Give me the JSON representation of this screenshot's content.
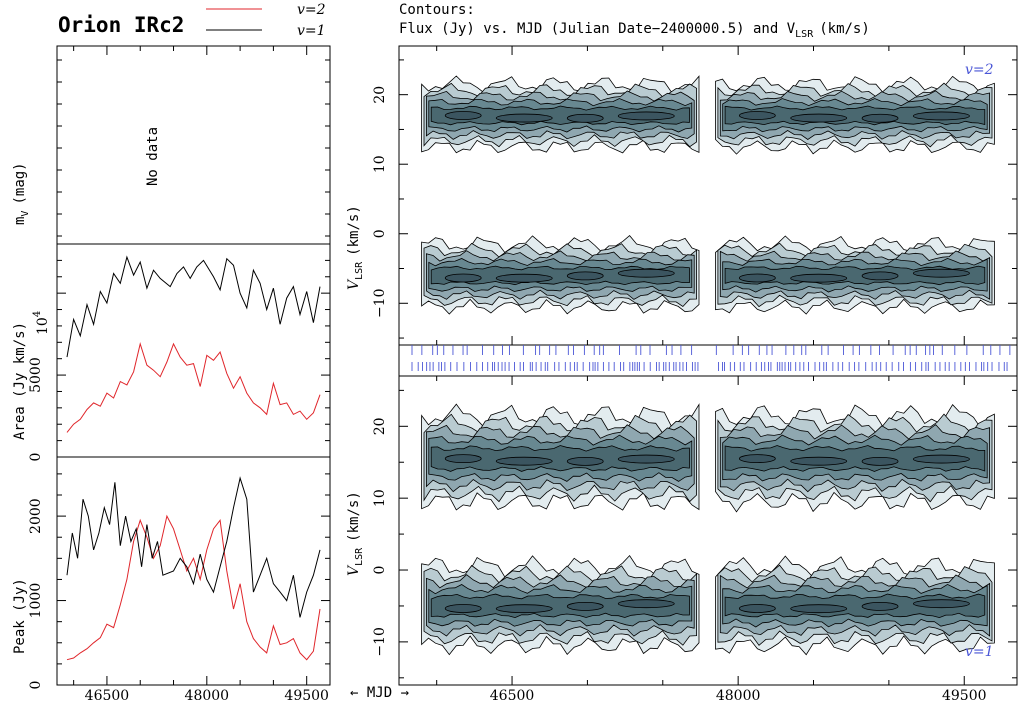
{
  "title": "Orion IRc2",
  "legend": [
    {
      "label": "v=2",
      "color": "#e0262b"
    },
    {
      "label": "v=1",
      "color": "#000000"
    }
  ],
  "contour_header": {
    "line1": "Contours:",
    "line2": "Flux (Jy) vs. MJD (Julian  Date−2400000.5) and V",
    "line2_sub": "LSR",
    "line2_tail": "(km/s)"
  },
  "mjd_arrow_label": "← MJD →",
  "colors": {
    "v2": "#e0262b",
    "v1": "#000000",
    "accent": "#4a56d6",
    "contour_levels": [
      "#e3ecef",
      "#b9cbd1",
      "#8fa7b0",
      "#688891",
      "#4a6870"
    ]
  },
  "panels": {
    "mv": {
      "ylabel": "m",
      "ylabel_sub": "V",
      "ylabel_tail": "(mag)",
      "note": "No data"
    },
    "area": {
      "ylabel": "Area (Jy km/s)",
      "multiplier": "10",
      "multiplier_exp": "4",
      "ticks": [
        "0",
        "5000"
      ]
    },
    "peak": {
      "ylabel": "Peak (Jy)",
      "ticks": [
        "0",
        "1000",
        "2000"
      ]
    },
    "xticks": [
      "46500",
      "48000",
      "49500"
    ],
    "v2_map": {
      "tag": "v=2",
      "ylabel": "V",
      "ylabel_sub": "LSR",
      "ylabel_tail": "(km/s)",
      "ticks": [
        "−10",
        "0",
        "10",
        "20"
      ]
    },
    "v1_map": {
      "tag": "v=1",
      "ylabel": "V",
      "ylabel_sub": "LSR",
      "ylabel_tail": "(km/s)",
      "ticks": [
        "−10",
        "0",
        "10",
        "20"
      ]
    }
  },
  "chart_data": [
    {
      "type": "line",
      "panel": "Area",
      "ylabel": "Area (Jy km/s)",
      "xlabel": "MJD",
      "xlim": [
        45750,
        49850
      ],
      "ylim": [
        0,
        13000
      ],
      "series": [
        {
          "name": "v=2",
          "color": "#e0262b",
          "x": [
            45900,
            46000,
            46100,
            46200,
            46300,
            46400,
            46500,
            46600,
            46700,
            46800,
            46900,
            47000,
            47100,
            47200,
            47300,
            47400,
            47500,
            47600,
            47700,
            47800,
            47900,
            48000,
            48100,
            48200,
            48300,
            48400,
            48500,
            48600,
            48700,
            48800,
            48900,
            49000,
            49100,
            49200,
            49300,
            49400,
            49500,
            49600,
            49700
          ],
          "y": [
            1500,
            2000,
            2300,
            2900,
            3300,
            3100,
            3900,
            3600,
            4600,
            4400,
            5200,
            6900,
            5600,
            5300,
            4900,
            5800,
            6900,
            6100,
            5600,
            5700,
            4300,
            6200,
            5900,
            6400,
            5100,
            4200,
            4900,
            3900,
            3300,
            3000,
            2600,
            4500,
            3200,
            3300,
            2600,
            2800,
            2300,
            2700,
            3800
          ]
        },
        {
          "name": "v=1",
          "color": "#000000",
          "x": [
            45900,
            46000,
            46100,
            46200,
            46300,
            46400,
            46500,
            46600,
            46700,
            46800,
            46900,
            47000,
            47100,
            47200,
            47300,
            47450,
            47550,
            47650,
            47750,
            47850,
            47950,
            48100,
            48200,
            48300,
            48400,
            48500,
            48600,
            48700,
            48800,
            48900,
            49000,
            49100,
            49200,
            49300,
            49400,
            49500,
            49600,
            49700
          ],
          "y": [
            6100,
            8400,
            7400,
            9300,
            8100,
            10100,
            9400,
            11200,
            10600,
            12200,
            11100,
            11900,
            10300,
            11400,
            10900,
            10400,
            11200,
            11600,
            10900,
            11600,
            12000,
            11000,
            10200,
            12100,
            11700,
            10000,
            9100,
            11400,
            10600,
            9000,
            10300,
            8100,
            9700,
            10400,
            8700,
            10100,
            8200,
            10400
          ]
        }
      ]
    },
    {
      "type": "line",
      "panel": "Peak",
      "ylabel": "Peak (Jy)",
      "xlabel": "MJD",
      "xlim": [
        45750,
        49850
      ],
      "ylim": [
        0,
        2700
      ],
      "series": [
        {
          "name": "v=2",
          "color": "#e0262b",
          "x": [
            45900,
            46000,
            46100,
            46200,
            46300,
            46400,
            46500,
            46600,
            46700,
            46800,
            46900,
            47000,
            47100,
            47200,
            47300,
            47400,
            47500,
            47600,
            47700,
            47800,
            47900,
            48000,
            48100,
            48200,
            48300,
            48400,
            48500,
            48600,
            48700,
            48800,
            48900,
            49000,
            49100,
            49200,
            49300,
            49400,
            49500,
            49600,
            49700
          ],
          "y": [
            300,
            320,
            380,
            430,
            500,
            560,
            720,
            680,
            950,
            1250,
            1700,
            1950,
            1750,
            1500,
            1650,
            2000,
            1850,
            1600,
            1350,
            1500,
            1250,
            1600,
            1850,
            1950,
            1350,
            900,
            1200,
            750,
            550,
            450,
            380,
            700,
            480,
            500,
            550,
            380,
            300,
            400,
            900
          ]
        },
        {
          "name": "v=1",
          "color": "#000000",
          "x": [
            45900,
            45980,
            46060,
            46140,
            46220,
            46300,
            46380,
            46460,
            46540,
            46620,
            46700,
            46780,
            46860,
            46940,
            47020,
            47100,
            47180,
            47260,
            47340,
            47500,
            47600,
            47700,
            47800,
            47900,
            48000,
            48100,
            48200,
            48300,
            48400,
            48500,
            48600,
            48700,
            48800,
            48900,
            49000,
            49100,
            49200,
            49300,
            49400,
            49500,
            49600,
            49700
          ],
          "y": [
            1300,
            1800,
            1500,
            2200,
            2000,
            1600,
            1800,
            2100,
            1900,
            2400,
            1650,
            2000,
            1700,
            1850,
            1400,
            1900,
            1500,
            1700,
            1300,
            1350,
            1500,
            1400,
            1200,
            1550,
            1250,
            1100,
            1400,
            1700,
            2100,
            2450,
            2200,
            1100,
            1300,
            1500,
            1200,
            1100,
            1000,
            1300,
            800,
            1100,
            1300,
            1600
          ]
        }
      ]
    },
    {
      "type": "heatmap",
      "panel": "v=2 contours",
      "xlabel": "MJD",
      "ylabel": "VLSR (km/s)",
      "xlim": [
        45750,
        49850
      ],
      "ylim": [
        -16,
        27
      ],
      "gap_mjd": [
        47740,
        47850
      ],
      "components": [
        {
          "center_velocity": 17,
          "width": 9,
          "mjd_range": [
            45900,
            49700
          ]
        },
        {
          "center_velocity": -6,
          "width": 9,
          "mjd_range": [
            45900,
            49700
          ]
        }
      ]
    },
    {
      "type": "heatmap",
      "panel": "v=1 contours",
      "xlabel": "MJD",
      "ylabel": "VLSR (km/s)",
      "xlim": [
        45750,
        49850
      ],
      "ylim": [
        -16,
        27
      ],
      "gap_mjd": [
        47740,
        47850
      ],
      "components": [
        {
          "center_velocity": 15.5,
          "width": 12,
          "mjd_range": [
            45900,
            49700
          ]
        },
        {
          "center_velocity": -5,
          "width": 11,
          "mjd_range": [
            45900,
            49700
          ]
        }
      ]
    }
  ]
}
